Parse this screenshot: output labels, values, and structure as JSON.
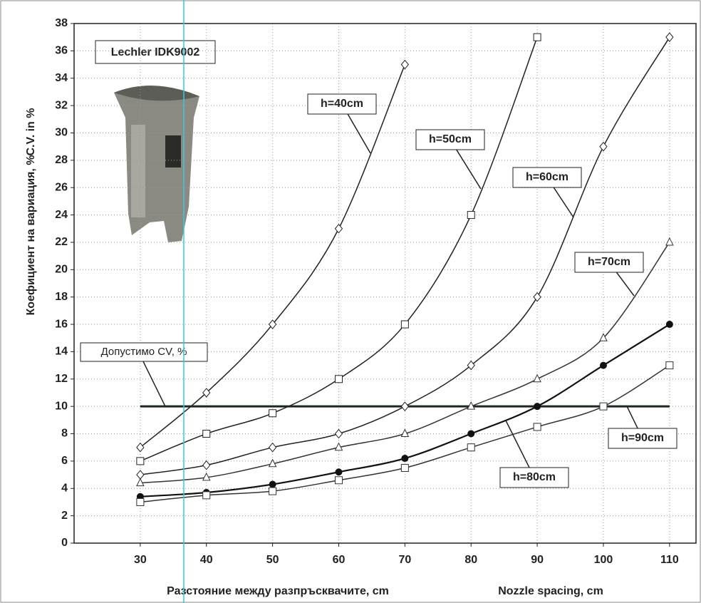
{
  "chart_data": {
    "type": "line",
    "annotation": "Lechler IDK9002",
    "xlabel": "Разстояние между разпръсквачите, cm",
    "xlabel_en": "Nozzle spacing, cm",
    "ylabel": "Коефициент на вариация, %",
    "ylabel_en": "C.V. in %",
    "x": [
      30,
      40,
      50,
      60,
      70,
      80,
      90,
      100,
      110
    ],
    "series": [
      {
        "name": "h=40cm",
        "color": "#222222",
        "marker": "diamond",
        "values": [
          7,
          11,
          16,
          23,
          35,
          null,
          null,
          null,
          null
        ]
      },
      {
        "name": "h=50cm",
        "color": "#222222",
        "marker": "square",
        "values": [
          6,
          8,
          9.5,
          12,
          16,
          24,
          37,
          null,
          null
        ]
      },
      {
        "name": "h=60cm",
        "color": "#222222",
        "marker": "diamond",
        "values": [
          5,
          5.7,
          7,
          8,
          10,
          13,
          18,
          29,
          37
        ]
      },
      {
        "name": "h=70cm",
        "color": "#333333",
        "marker": "triangle",
        "values": [
          4.4,
          4.8,
          5.8,
          7,
          8,
          10,
          12,
          15,
          22
        ]
      },
      {
        "name": "h=80cm",
        "color": "#111111",
        "marker": "circle",
        "values": [
          3.4,
          3.7,
          4.3,
          5.2,
          6.2,
          8,
          10,
          13,
          16
        ]
      },
      {
        "name": "h=90cm",
        "color": "#333333",
        "marker": "square",
        "values": [
          3,
          3.5,
          3.8,
          4.6,
          5.5,
          7,
          8.5,
          10,
          13
        ]
      }
    ],
    "threshold": {
      "value": 10,
      "label": "Допустимо CV, %",
      "color": "#1a2a1a"
    },
    "xlim": [
      20,
      114
    ],
    "xticks": [
      30,
      40,
      50,
      60,
      70,
      80,
      90,
      100,
      110
    ],
    "ylim": [
      0,
      38
    ],
    "yticks": [
      0,
      2,
      4,
      6,
      8,
      10,
      12,
      14,
      16,
      18,
      20,
      22,
      24,
      26,
      28,
      30,
      32,
      34,
      36,
      38
    ],
    "grid": true
  }
}
